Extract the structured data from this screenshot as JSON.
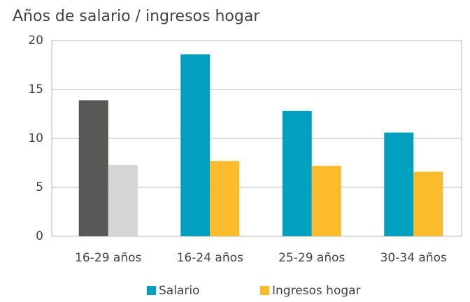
{
  "chart_data": {
    "type": "bar",
    "title": "Años de salario / ingresos hogar",
    "categories": [
      "16-29 años",
      "16-24 años",
      "25-29 años",
      "30-34 años"
    ],
    "series": [
      {
        "name": "Salario",
        "color": "#00a0be",
        "colors": [
          "#575756",
          "#00a0be",
          "#00a0be",
          "#00a0be"
        ],
        "values": [
          13.9,
          18.6,
          12.8,
          10.6
        ]
      },
      {
        "name": "Ingresos hogar",
        "color": "#fbbb2a",
        "colors": [
          "#d6d6d6",
          "#fbbb2a",
          "#fbbb2a",
          "#fbbb2a"
        ],
        "values": [
          7.3,
          7.7,
          7.2,
          6.6
        ]
      }
    ],
    "ylim": [
      0,
      20
    ],
    "yticks": [
      0,
      5,
      10,
      15,
      20
    ],
    "grid": true,
    "legend": "bottom"
  }
}
